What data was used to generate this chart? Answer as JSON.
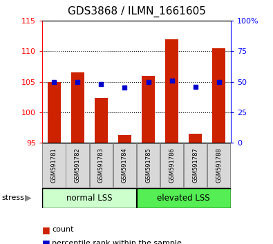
{
  "title": "GDS3868 / ILMN_1661605",
  "categories": [
    "GSM591781",
    "GSM591782",
    "GSM591783",
    "GSM591784",
    "GSM591785",
    "GSM591786",
    "GSM591787",
    "GSM591788"
  ],
  "bar_values": [
    105.0,
    106.5,
    102.3,
    96.2,
    106.0,
    112.0,
    96.5,
    110.5
  ],
  "dot_values": [
    50,
    50,
    48,
    45,
    50,
    51,
    46,
    50
  ],
  "ylim_left": [
    95,
    115
  ],
  "ylim_right": [
    0,
    100
  ],
  "yticks_left": [
    95,
    100,
    105,
    110,
    115
  ],
  "yticks_right": [
    0,
    25,
    50,
    75,
    100
  ],
  "ytick_labels_right": [
    "0",
    "25",
    "50",
    "75",
    "100%"
  ],
  "bar_color": "#cc2200",
  "dot_color": "#0000cc",
  "group1_label": "normal LSS",
  "group2_label": "elevated LSS",
  "group1_color": "#ccffcc",
  "group2_color": "#55ee55",
  "stress_label": "stress",
  "legend_count": "count",
  "legend_pct": "percentile rank within the sample",
  "title_fontsize": 11,
  "tick_fontsize": 8,
  "group1_indices": [
    0,
    1,
    2,
    3
  ],
  "group2_indices": [
    4,
    5,
    6,
    7
  ]
}
